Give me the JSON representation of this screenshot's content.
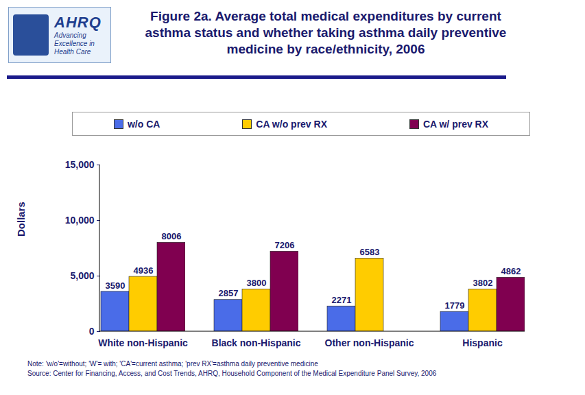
{
  "chart_data": {
    "type": "bar",
    "title": "Figure 2a. Average total medical expenditures by current asthma status and whether taking asthma daily preventive medicine by race/ethnicity, 2006",
    "logo": {
      "name": "AHRQ",
      "tagline": "Advancing Excellence in Health Care"
    },
    "ylabel": "Dollars",
    "categories": [
      "White non-Hispanic",
      "Black non-Hispanic",
      "Other non-Hispanic",
      "Hispanic"
    ],
    "series": [
      {
        "name": "w/o CA",
        "color": "#4a6ce8",
        "values": [
          3590,
          2857,
          2271,
          1779
        ]
      },
      {
        "name": "CA w/o prev RX",
        "color": "#ffcc00",
        "values": [
          4936,
          3800,
          6583,
          3802
        ]
      },
      {
        "name": "CA w/ prev RX",
        "color": "#800050",
        "values": [
          8006,
          7206,
          null,
          4862
        ]
      }
    ],
    "ylim": [
      0,
      15000
    ],
    "yticks": [
      0,
      {
        "value": 5000,
        "label": "5,000"
      },
      {
        "value": 10000,
        "label": "10,000"
      },
      {
        "value": 15000,
        "label": "15,000"
      }
    ],
    "grid": false,
    "legend": "top",
    "data_labels": true,
    "note": "Note: 'w/o'=without; 'W'= with; 'CA'=current asthma; 'prev RX'=asthma daily preventive medicine",
    "source": "Source: Center for Financing, Access, and Cost Trends, AHRQ, Household Component of the Medical Expenditure Panel Survey, 2006"
  }
}
